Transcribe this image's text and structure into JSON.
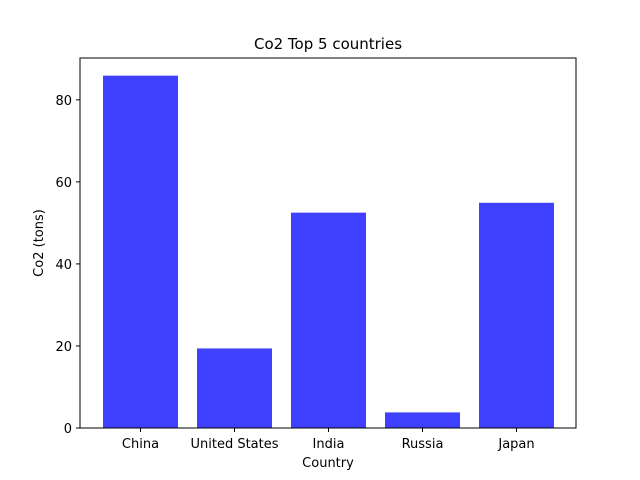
{
  "chart_data": {
    "type": "bar",
    "title": "Co2 Top 5 countries",
    "xlabel": "Country",
    "ylabel": "Co2 (tons)",
    "categories": [
      "China",
      "United States",
      "India",
      "Russia",
      "Japan"
    ],
    "values": [
      85.9,
      19.4,
      52.5,
      3.8,
      54.9
    ],
    "ylim": [
      0,
      90.2
    ],
    "yticks": [
      0,
      20,
      40,
      60,
      80
    ],
    "bar_color": "#4040ff",
    "grid": false,
    "legend": "none"
  }
}
